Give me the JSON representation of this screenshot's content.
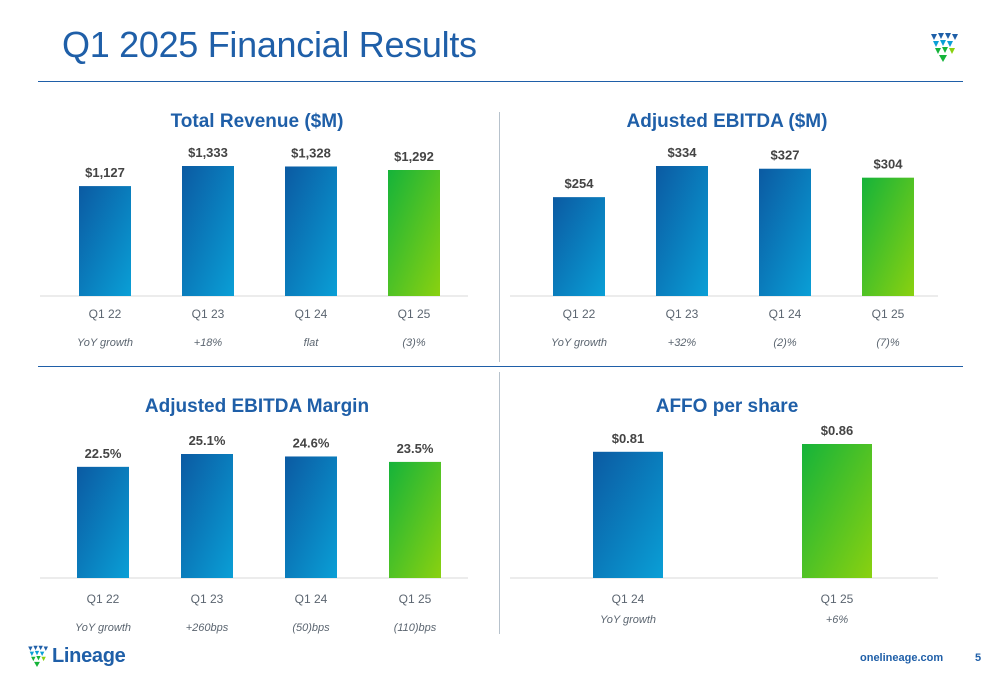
{
  "page": {
    "title": "Q1 2025 Financial Results",
    "website": "onelineage.com",
    "page_number": "5",
    "brand": "Lineage",
    "colors": {
      "title_blue": "#1f5fa8",
      "bar_blue_dark": "#0b5aa2",
      "bar_blue_light": "#0a9fd6",
      "bar_green_dark": "#15b33a",
      "bar_green_light": "#8ad110",
      "axis_text": "#5b6570",
      "label_text": "#444444",
      "baseline": "#d9d9d9"
    }
  },
  "chart_data": [
    {
      "type": "bar",
      "title": "Total Revenue ($M)",
      "categories": [
        "Q1 22",
        "Q1 23",
        "Q1 24",
        "Q1 25"
      ],
      "values": [
        1127,
        1333,
        1328,
        1292
      ],
      "value_labels": [
        "$1,127",
        "$1,333",
        "$1,328",
        "$1,292"
      ],
      "growth_label": "YoY growth",
      "growth": [
        "+18%",
        "flat",
        "(3)%"
      ],
      "ylim": [
        0,
        1333
      ],
      "highlight_last": true
    },
    {
      "type": "bar",
      "title": "Adjusted EBITDA ($M)",
      "categories": [
        "Q1 22",
        "Q1 23",
        "Q1 24",
        "Q1 25"
      ],
      "values": [
        254,
        334,
        327,
        304
      ],
      "value_labels": [
        "$254",
        "$334",
        "$327",
        "$304"
      ],
      "growth_label": "YoY growth",
      "growth": [
        "+32%",
        "(2)%",
        "(7)%"
      ],
      "ylim": [
        0,
        334
      ],
      "highlight_last": true
    },
    {
      "type": "bar",
      "title": "Adjusted EBITDA Margin",
      "categories": [
        "Q1 22",
        "Q1 23",
        "Q1 24",
        "Q1 25"
      ],
      "values": [
        22.5,
        25.1,
        24.6,
        23.5
      ],
      "value_labels": [
        "22.5%",
        "25.1%",
        "24.6%",
        "23.5%"
      ],
      "growth_label": "YoY growth",
      "growth": [
        "+260bps",
        "(50)bps",
        "(110)bps"
      ],
      "ylim": [
        0,
        25.1
      ],
      "highlight_last": true
    },
    {
      "type": "bar",
      "title": "AFFO per share",
      "categories": [
        "Q1 24",
        "Q1 25"
      ],
      "values": [
        0.81,
        0.86
      ],
      "value_labels": [
        "$0.81",
        "$0.86"
      ],
      "growth_label": "YoY growth",
      "growth": [
        "+6%"
      ],
      "ylim": [
        0,
        0.86
      ],
      "highlight_last": true
    }
  ]
}
